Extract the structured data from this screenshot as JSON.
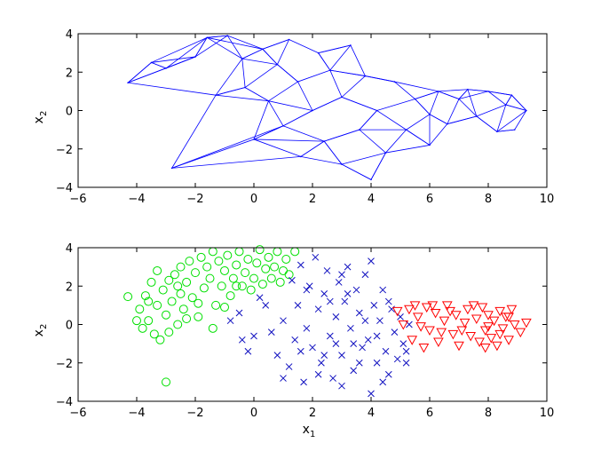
{
  "chart_data": [
    {
      "type": "network",
      "xlim": [
        -6,
        10
      ],
      "ylim": [
        -4,
        4
      ],
      "xticks": [
        "−6",
        "−4",
        "−2",
        "0",
        "2",
        "4",
        "6",
        "8",
        "10"
      ],
      "yticks": [
        "−4",
        "−2",
        "0",
        "2",
        "4"
      ],
      "xlabel": "",
      "ylabel_base": "x",
      "ylabel_sub": "2",
      "grid": false,
      "line_color": "#0000ff",
      "nodes": [
        [
          -4.3,
          1.45
        ],
        [
          -3.5,
          2.5
        ],
        [
          -3.0,
          2.2
        ],
        [
          -2.8,
          -3.0
        ],
        [
          -2.0,
          2.8
        ],
        [
          -1.6,
          3.8
        ],
        [
          -1.3,
          0.8
        ],
        [
          -0.9,
          3.9
        ],
        [
          -0.4,
          2.7
        ],
        [
          -0.3,
          1.2
        ],
        [
          0.0,
          -1.5
        ],
        [
          0.3,
          3.2
        ],
        [
          0.5,
          0.5
        ],
        [
          0.8,
          2.4
        ],
        [
          1.0,
          -0.8
        ],
        [
          1.2,
          3.7
        ],
        [
          1.5,
          1.5
        ],
        [
          1.6,
          -2.4
        ],
        [
          2.0,
          0.0
        ],
        [
          2.2,
          3.0
        ],
        [
          2.4,
          -1.6
        ],
        [
          2.6,
          2.1
        ],
        [
          3.0,
          -2.8
        ],
        [
          3.0,
          0.7
        ],
        [
          3.3,
          3.4
        ],
        [
          3.6,
          -1.0
        ],
        [
          3.8,
          1.8
        ],
        [
          4.0,
          -3.6
        ],
        [
          4.2,
          0.0
        ],
        [
          4.5,
          -2.2
        ],
        [
          4.8,
          1.5
        ],
        [
          5.2,
          -1.0
        ],
        [
          5.5,
          0.6
        ],
        [
          6.0,
          -1.8
        ],
        [
          6.3,
          1.0
        ],
        [
          6.6,
          -0.7
        ],
        [
          7.0,
          0.6
        ],
        [
          7.3,
          1.1
        ],
        [
          7.6,
          -0.3
        ],
        [
          8.0,
          1.0
        ],
        [
          8.3,
          -1.1
        ],
        [
          8.6,
          0.3
        ],
        [
          8.9,
          -1.0
        ],
        [
          8.8,
          0.8
        ],
        [
          9.3,
          0.0
        ],
        [
          6.0,
          -0.2
        ]
      ],
      "node_max_connect": 0.95
    },
    {
      "type": "scatter",
      "xlim": [
        -6,
        10
      ],
      "ylim": [
        -4,
        4
      ],
      "xticks": [
        "−6",
        "−4",
        "−2",
        "0",
        "2",
        "4",
        "6",
        "8",
        "10"
      ],
      "yticks": [
        "−4",
        "−2",
        "0",
        "2",
        "4"
      ],
      "xlabel_base": "x",
      "xlabel_sub": "1",
      "ylabel_base": "x",
      "ylabel_sub": "2",
      "grid": false,
      "series": [
        {
          "marker": "circle",
          "color": "#00e000",
          "points": [
            [
              -4.3,
              1.45
            ],
            [
              -3.9,
              0.8
            ],
            [
              -3.7,
              1.5
            ],
            [
              -3.6,
              0.2
            ],
            [
              -3.5,
              2.2
            ],
            [
              -3.4,
              -0.5
            ],
            [
              -3.3,
              1.0
            ],
            [
              -3.2,
              -0.8
            ],
            [
              -3.1,
              1.8
            ],
            [
              -3.0,
              0.5
            ],
            [
              -2.9,
              2.3
            ],
            [
              -2.9,
              -0.4
            ],
            [
              -2.8,
              1.2
            ],
            [
              -2.7,
              2.6
            ],
            [
              -2.6,
              0.0
            ],
            [
              -2.5,
              1.6
            ],
            [
              -2.5,
              3.0
            ],
            [
              -2.4,
              0.8
            ],
            [
              -2.3,
              2.2
            ],
            [
              -2.2,
              3.3
            ],
            [
              -2.1,
              1.4
            ],
            [
              -2.0,
              2.7
            ],
            [
              -1.9,
              0.4
            ],
            [
              -1.8,
              3.5
            ],
            [
              -1.7,
              1.9
            ],
            [
              -1.6,
              3.0
            ],
            [
              -1.5,
              2.4
            ],
            [
              -1.4,
              3.8
            ],
            [
              -1.3,
              1.0
            ],
            [
              -1.2,
              3.3
            ],
            [
              -1.1,
              2.0
            ],
            [
              -1.0,
              2.8
            ],
            [
              -0.9,
              3.6
            ],
            [
              -0.8,
              1.5
            ],
            [
              -0.7,
              2.4
            ],
            [
              -0.6,
              3.1
            ],
            [
              -0.5,
              3.8
            ],
            [
              -0.4,
              2.0
            ],
            [
              -0.3,
              2.7
            ],
            [
              -0.2,
              3.4
            ],
            [
              -0.1,
              1.8
            ],
            [
              0.0,
              2.4
            ],
            [
              0.1,
              3.2
            ],
            [
              0.2,
              3.9
            ],
            [
              0.3,
              2.1
            ],
            [
              0.4,
              2.9
            ],
            [
              0.5,
              3.5
            ],
            [
              0.6,
              2.4
            ],
            [
              0.7,
              3.0
            ],
            [
              0.8,
              3.8
            ],
            [
              0.9,
              2.2
            ],
            [
              1.0,
              2.8
            ],
            [
              1.1,
              3.4
            ],
            [
              1.2,
              2.6
            ],
            [
              1.4,
              3.8
            ],
            [
              -3.0,
              -3.0
            ],
            [
              -1.4,
              -0.2
            ],
            [
              -1.0,
              0.9
            ],
            [
              -2.3,
              0.3
            ],
            [
              -3.8,
              -0.2
            ],
            [
              -1.9,
              1.1
            ],
            [
              -0.6,
              2.0
            ],
            [
              -3.3,
              2.8
            ],
            [
              -2.6,
              2.0
            ],
            [
              -3.6,
              1.2
            ],
            [
              -4.0,
              0.2
            ]
          ]
        },
        {
          "marker": "x",
          "color": "#1010c0",
          "points": [
            [
              1.3,
              2.3
            ],
            [
              1.5,
              1.0
            ],
            [
              1.6,
              3.1
            ],
            [
              1.8,
              -0.2
            ],
            [
              1.9,
              2.0
            ],
            [
              2.0,
              -1.2
            ],
            [
              2.1,
              3.5
            ],
            [
              2.2,
              0.8
            ],
            [
              2.3,
              -2.0
            ],
            [
              2.4,
              1.6
            ],
            [
              2.5,
              2.8
            ],
            [
              2.6,
              -0.6
            ],
            [
              2.7,
              -2.8
            ],
            [
              2.8,
              0.4
            ],
            [
              2.9,
              2.2
            ],
            [
              3.0,
              -1.6
            ],
            [
              3.1,
              1.2
            ],
            [
              3.2,
              3.0
            ],
            [
              3.3,
              -0.2
            ],
            [
              3.4,
              -2.4
            ],
            [
              3.5,
              1.8
            ],
            [
              3.6,
              0.6
            ],
            [
              3.7,
              -1.2
            ],
            [
              3.8,
              2.6
            ],
            [
              3.9,
              -0.8
            ],
            [
              4.0,
              -3.6
            ],
            [
              4.0,
              3.3
            ],
            [
              4.1,
              1.0
            ],
            [
              4.2,
              -2.0
            ],
            [
              4.3,
              0.2
            ],
            [
              4.4,
              1.8
            ],
            [
              4.5,
              -1.4
            ],
            [
              4.6,
              -2.6
            ],
            [
              4.7,
              0.8
            ],
            [
              4.8,
              -0.4
            ],
            [
              4.9,
              -1.8
            ],
            [
              5.0,
              0.4
            ],
            [
              5.1,
              -1.0
            ],
            [
              5.2,
              -2.0
            ],
            [
              5.3,
              0.0
            ],
            [
              1.6,
              -1.4
            ],
            [
              1.8,
              1.8
            ],
            [
              2.2,
              -2.6
            ],
            [
              2.6,
              1.2
            ],
            [
              3.0,
              2.6
            ],
            [
              3.4,
              -1.0
            ],
            [
              3.8,
              0.2
            ],
            [
              -0.5,
              0.6
            ],
            [
              0.0,
              -0.6
            ],
            [
              0.4,
              1.0
            ],
            [
              0.8,
              -1.6
            ],
            [
              1.0,
              0.2
            ],
            [
              1.2,
              -2.2
            ],
            [
              -0.2,
              -1.4
            ],
            [
              0.6,
              -0.4
            ],
            [
              -0.8,
              0.2
            ],
            [
              -0.4,
              -0.8
            ],
            [
              0.2,
              1.4
            ],
            [
              1.4,
              -0.8
            ],
            [
              2.4,
              -1.6
            ],
            [
              2.8,
              -1.0
            ],
            [
              3.2,
              1.6
            ],
            [
              3.6,
              -2.0
            ],
            [
              4.2,
              -0.6
            ],
            [
              4.6,
              1.2
            ],
            [
              5.2,
              -1.4
            ],
            [
              1.0,
              -2.8
            ],
            [
              1.7,
              -3.0
            ],
            [
              3.0,
              -3.2
            ],
            [
              4.4,
              -3.0
            ]
          ]
        },
        {
          "marker": "triangle-down",
          "color": "#ff0000",
          "points": [
            [
              4.9,
              0.7
            ],
            [
              5.1,
              0.0
            ],
            [
              5.3,
              0.8
            ],
            [
              5.4,
              -0.8
            ],
            [
              5.6,
              0.4
            ],
            [
              5.8,
              -1.2
            ],
            [
              5.9,
              0.9
            ],
            [
              6.0,
              -0.3
            ],
            [
              6.2,
              0.6
            ],
            [
              6.3,
              -0.9
            ],
            [
              6.5,
              0.2
            ],
            [
              6.6,
              1.0
            ],
            [
              6.8,
              -0.5
            ],
            [
              6.9,
              0.5
            ],
            [
              7.0,
              -1.1
            ],
            [
              7.2,
              0.1
            ],
            [
              7.3,
              0.8
            ],
            [
              7.4,
              -0.6
            ],
            [
              7.6,
              0.3
            ],
            [
              7.7,
              -0.9
            ],
            [
              7.8,
              0.9
            ],
            [
              7.9,
              -0.3
            ],
            [
              8.0,
              0.5
            ],
            [
              8.1,
              -0.7
            ],
            [
              8.2,
              0.2
            ],
            [
              8.3,
              -1.1
            ],
            [
              8.4,
              0.7
            ],
            [
              8.5,
              -0.2
            ],
            [
              8.6,
              0.4
            ],
            [
              8.7,
              -0.8
            ],
            [
              8.8,
              0.8
            ],
            [
              8.9,
              0.0
            ],
            [
              9.1,
              -0.4
            ],
            [
              9.3,
              0.1
            ],
            [
              5.7,
              -0.1
            ],
            [
              6.1,
              1.0
            ],
            [
              7.1,
              -0.3
            ],
            [
              7.5,
              1.0
            ],
            [
              8.0,
              -0.1
            ],
            [
              8.4,
              -0.5
            ],
            [
              6.4,
              -0.4
            ],
            [
              5.5,
              1.0
            ],
            [
              7.9,
              -1.2
            ],
            [
              8.7,
              0.4
            ],
            [
              6.7,
              0.7
            ]
          ]
        }
      ]
    }
  ]
}
